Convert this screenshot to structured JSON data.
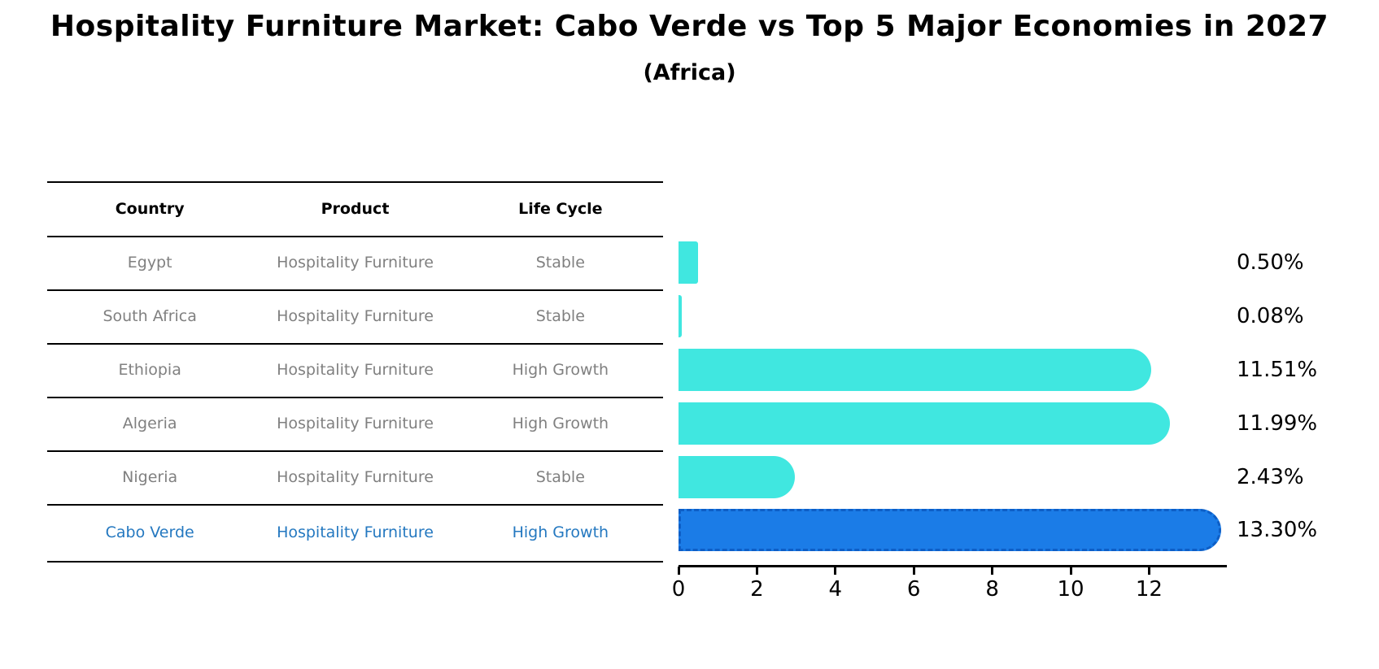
{
  "title": "Hospitality Furniture Market: Cabo Verde vs Top 5 Major Economies in 2027",
  "subtitle": "(Africa)",
  "table": {
    "headers": [
      "Country",
      "Product",
      "Life Cycle"
    ],
    "rows": [
      {
        "country": "Egypt",
        "product": "Hospitality Furniture",
        "life_cycle": "Stable",
        "highlight": false
      },
      {
        "country": "South Africa",
        "product": "Hospitality Furniture",
        "life_cycle": "Stable",
        "highlight": false
      },
      {
        "country": "Ethiopia",
        "product": "Hospitality Furniture",
        "life_cycle": "High Growth",
        "highlight": false
      },
      {
        "country": "Algeria",
        "product": "Hospitality Furniture",
        "life_cycle": "High Growth",
        "highlight": false
      },
      {
        "country": "Nigeria",
        "product": "Hospitality Furniture",
        "life_cycle": "Stable",
        "highlight": false
      },
      {
        "country": "Cabo Verde",
        "product": "Hospitality Furniture",
        "life_cycle": "High Growth",
        "highlight": true
      }
    ]
  },
  "chart_data": {
    "type": "bar",
    "orientation": "horizontal",
    "categories": [
      "Egypt",
      "South Africa",
      "Ethiopia",
      "Algeria",
      "Nigeria",
      "Cabo Verde"
    ],
    "values": [
      0.5,
      0.08,
      11.51,
      11.99,
      2.43,
      13.3
    ],
    "value_labels": [
      "0.50%",
      "0.08%",
      "11.51%",
      "11.99%",
      "2.43%",
      "13.30%"
    ],
    "x_ticks": [
      "0",
      "2",
      "4",
      "6",
      "8",
      "10",
      "12"
    ],
    "xlim": [
      0,
      14
    ],
    "grid": false,
    "legend": "none",
    "bar_color": "#40e7e0",
    "highlight_bar_color": "#1b7ce7",
    "highlight_border_color": "#0d5ec6",
    "highlight_index": 5
  },
  "colors": {
    "text_primary": "#000000",
    "text_muted": "#808080",
    "text_highlight": "#2478c0"
  }
}
